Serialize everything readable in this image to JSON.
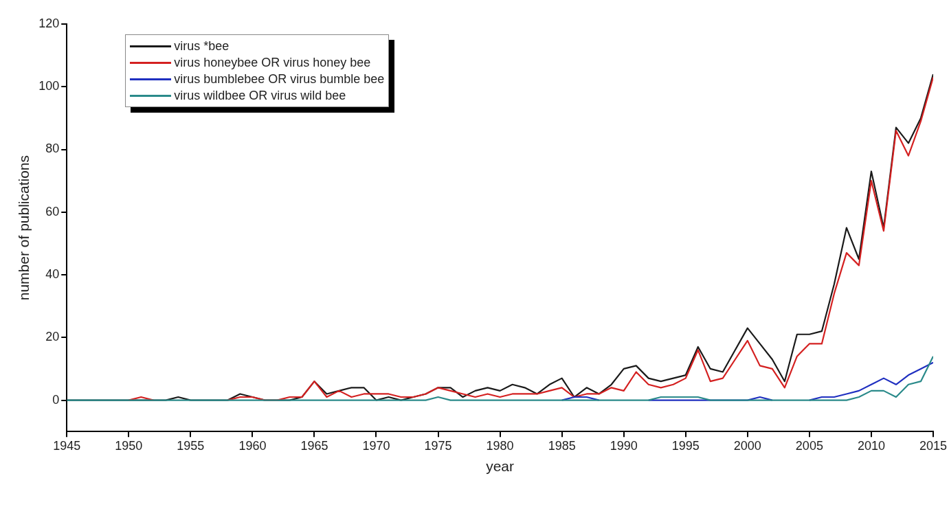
{
  "chart_data": {
    "type": "line",
    "xlabel": "year",
    "ylabel": "number of publications",
    "x": [
      1945,
      1946,
      1947,
      1948,
      1949,
      1950,
      1951,
      1952,
      1953,
      1954,
      1955,
      1956,
      1957,
      1958,
      1959,
      1960,
      1961,
      1962,
      1963,
      1964,
      1965,
      1966,
      1967,
      1968,
      1969,
      1970,
      1971,
      1972,
      1973,
      1974,
      1975,
      1976,
      1977,
      1978,
      1979,
      1980,
      1981,
      1982,
      1983,
      1984,
      1985,
      1986,
      1987,
      1988,
      1989,
      1990,
      1991,
      1992,
      1993,
      1994,
      1995,
      1996,
      1997,
      1998,
      1999,
      2000,
      2001,
      2002,
      2003,
      2004,
      2005,
      2006,
      2007,
      2008,
      2009,
      2010,
      2011,
      2012,
      2013,
      2014,
      2015
    ],
    "series": [
      {
        "name": "virus *bee",
        "color": "#1a1a1a",
        "values": [
          0,
          0,
          0,
          0,
          0,
          0,
          0,
          0,
          0,
          1,
          0,
          0,
          0,
          0,
          2,
          1,
          0,
          0,
          0,
          1,
          6,
          2,
          3,
          4,
          4,
          0,
          1,
          0,
          1,
          2,
          4,
          4,
          1,
          3,
          4,
          3,
          5,
          4,
          2,
          5,
          7,
          1,
          4,
          2,
          5,
          10,
          11,
          7,
          6,
          7,
          8,
          17,
          10,
          9,
          16,
          23,
          18,
          13,
          6,
          21,
          21,
          22,
          37,
          55,
          45,
          73,
          55,
          87,
          82,
          90,
          104
        ]
      },
      {
        "name": "virus honeybee OR virus honey bee",
        "color": "#d42020",
        "values": [
          null,
          null,
          null,
          null,
          null,
          0,
          1,
          0,
          null,
          null,
          null,
          null,
          null,
          0,
          1,
          1,
          0,
          0,
          1,
          1,
          6,
          1,
          3,
          1,
          2,
          2,
          2,
          1,
          1,
          2,
          4,
          3,
          2,
          1,
          2,
          1,
          2,
          2,
          2,
          3,
          4,
          1,
          2,
          2,
          4,
          3,
          9,
          5,
          4,
          5,
          7,
          16,
          6,
          7,
          13,
          19,
          11,
          10,
          4,
          14,
          18,
          18,
          34,
          47,
          43,
          70,
          54,
          86,
          78,
          89,
          103
        ]
      },
      {
        "name": "virus bumblebee OR virus bumble bee",
        "color": "#1f2fc0",
        "values": [
          null,
          null,
          null,
          null,
          null,
          null,
          null,
          null,
          null,
          null,
          null,
          null,
          null,
          null,
          null,
          null,
          null,
          null,
          null,
          null,
          null,
          null,
          null,
          null,
          null,
          null,
          null,
          null,
          null,
          null,
          null,
          null,
          null,
          null,
          null,
          null,
          null,
          null,
          null,
          null,
          0,
          1,
          1,
          0,
          null,
          null,
          null,
          0,
          0,
          0,
          0,
          0,
          0,
          0,
          0,
          0,
          1,
          0,
          null,
          null,
          0,
          1,
          1,
          2,
          3,
          5,
          7,
          5,
          8,
          10,
          12
        ]
      },
      {
        "name": "virus wildbee OR virus wild bee",
        "color": "#2a8a8a",
        "values": [
          0,
          0,
          0,
          0,
          0,
          0,
          0,
          0,
          0,
          0,
          0,
          0,
          0,
          0,
          0,
          0,
          0,
          0,
          0,
          0,
          0,
          0,
          0,
          0,
          0,
          0,
          0,
          0,
          0,
          0,
          1,
          0,
          0,
          0,
          0,
          0,
          0,
          0,
          0,
          0,
          0,
          0,
          0,
          0,
          0,
          0,
          0,
          0,
          1,
          1,
          1,
          1,
          0,
          0,
          0,
          0,
          0,
          0,
          0,
          0,
          0,
          0,
          0,
          0,
          1,
          3,
          3,
          1,
          5,
          6,
          14
        ]
      }
    ],
    "xlim": [
      1945,
      2015
    ],
    "xticks": [
      1945,
      1950,
      1955,
      1960,
      1965,
      1970,
      1975,
      1980,
      1985,
      1990,
      1995,
      2000,
      2005,
      2010,
      2015
    ],
    "ylim": [
      -10,
      120
    ],
    "yticks": [
      0,
      20,
      40,
      60,
      80,
      100,
      120
    ],
    "grid": false,
    "legend": "top left",
    "marker": "none",
    "line_style": "solid"
  }
}
